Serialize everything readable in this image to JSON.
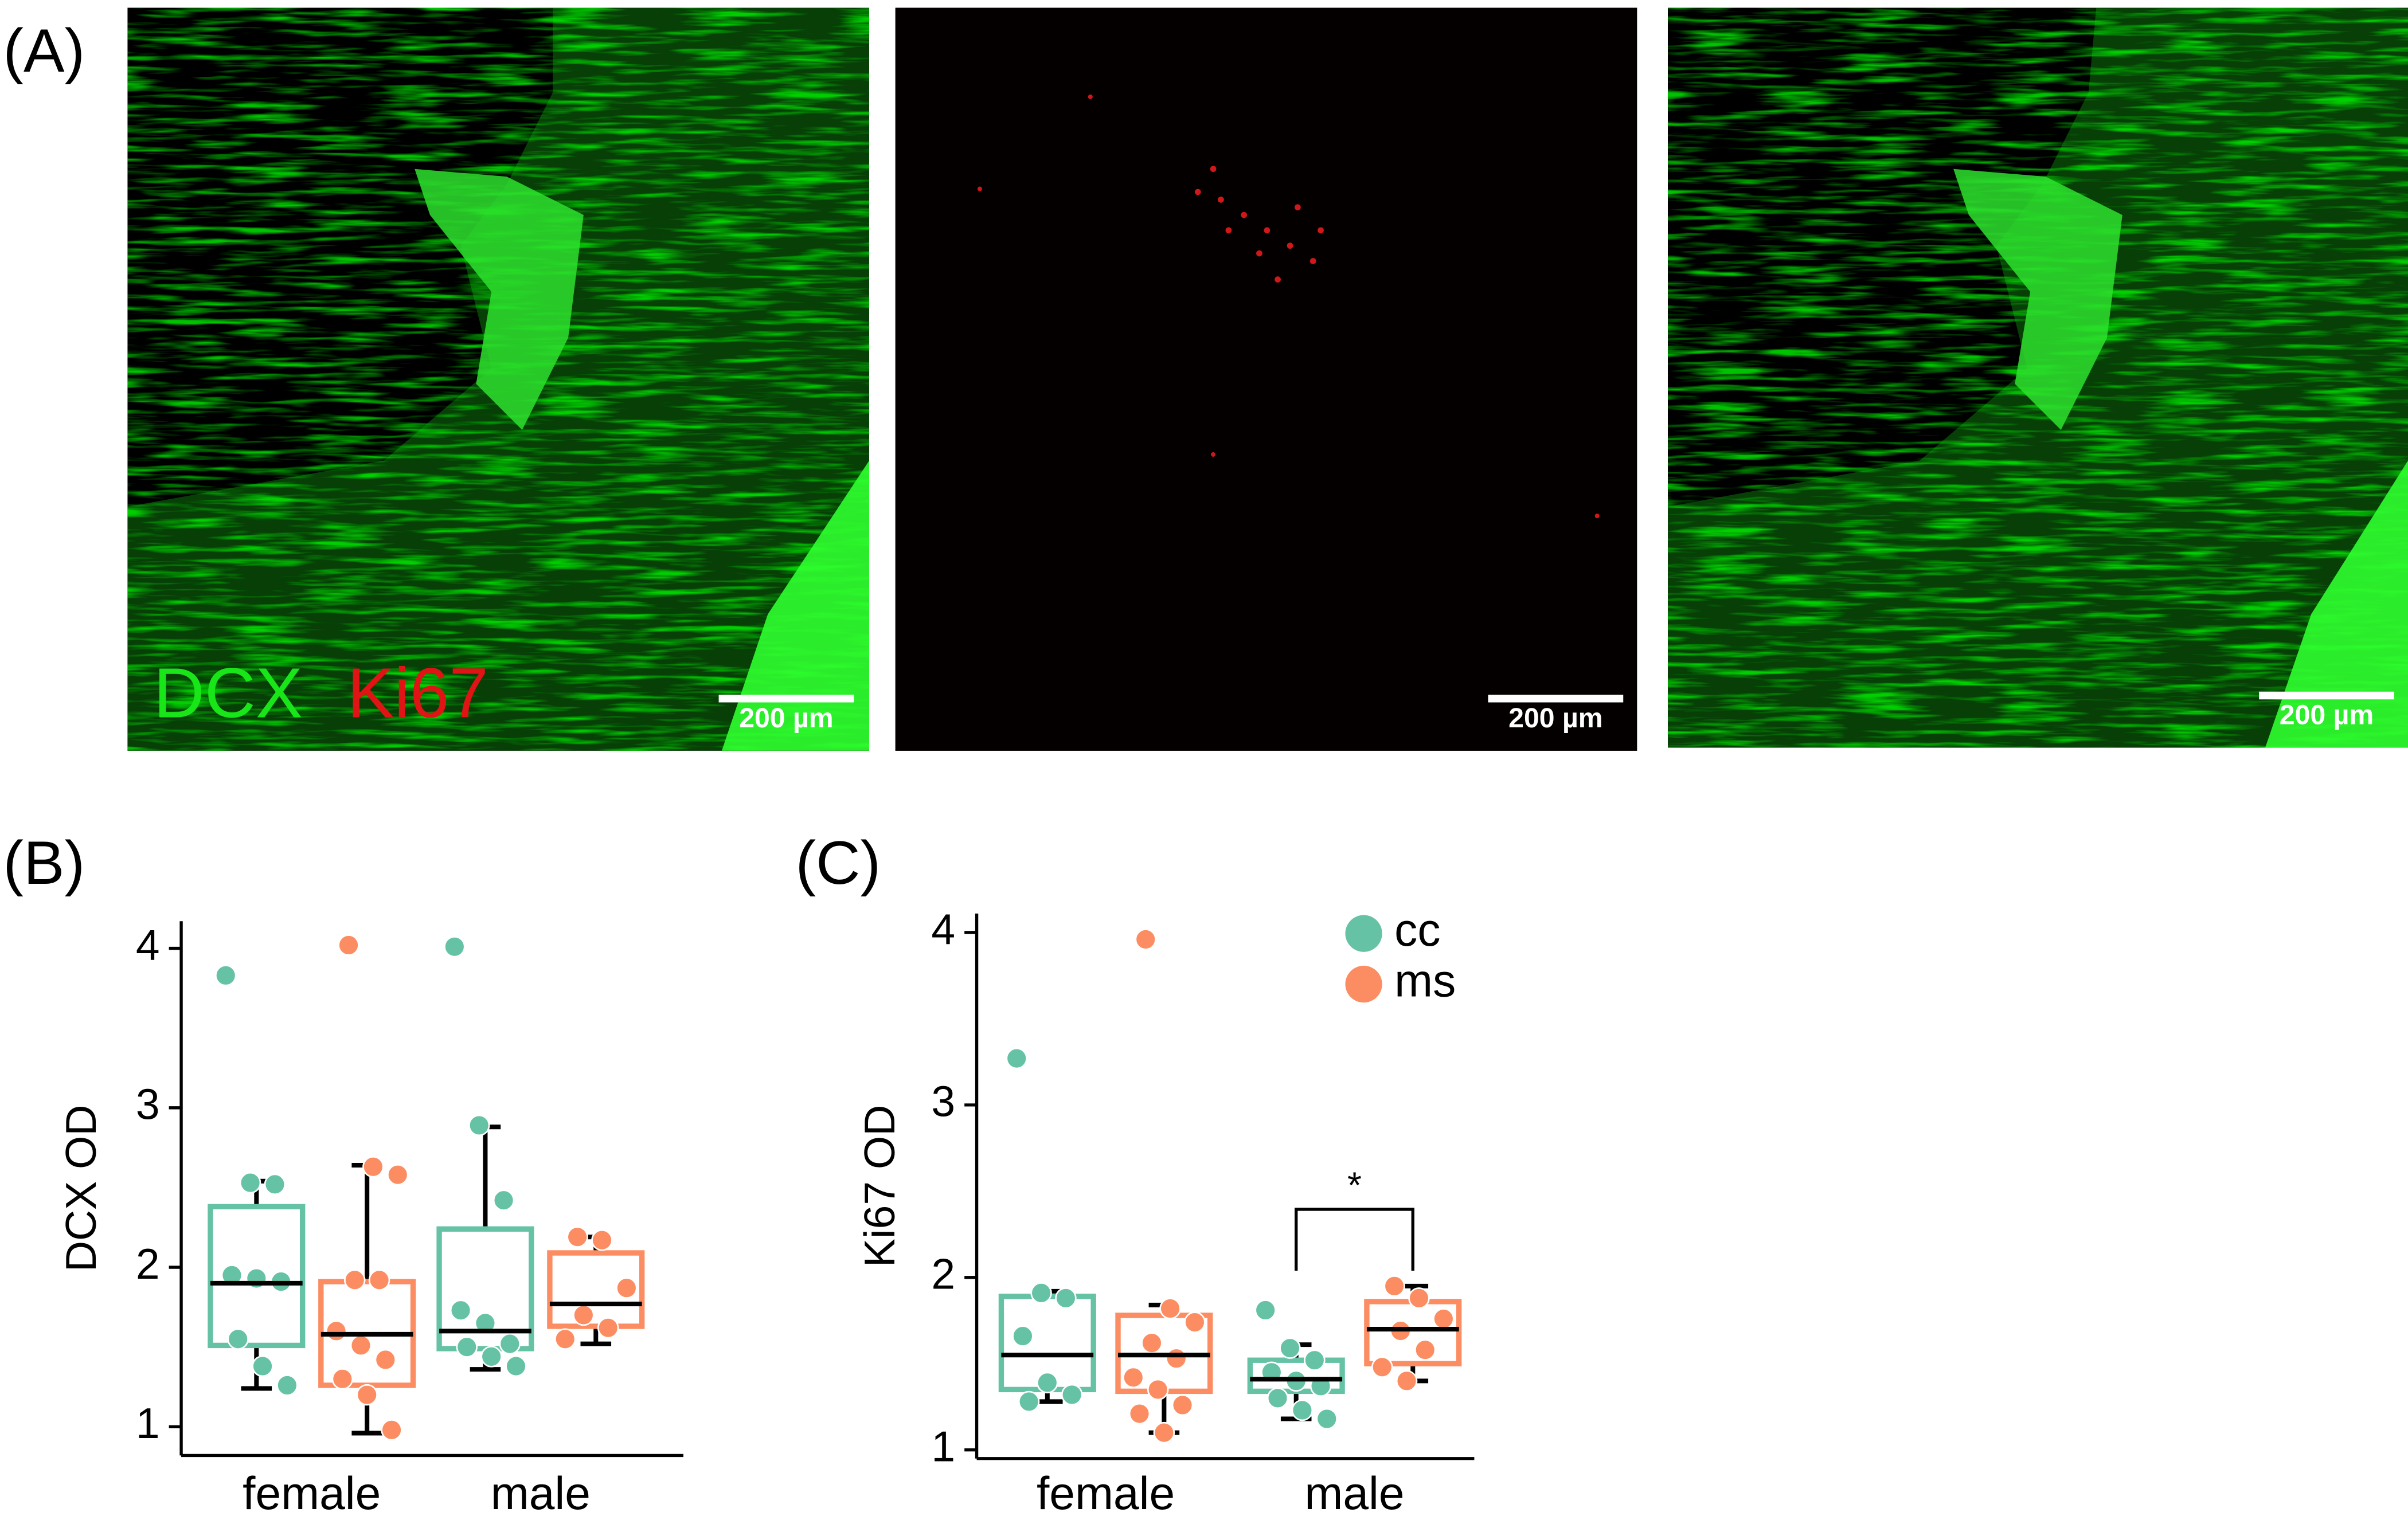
{
  "figure": {
    "panel_a": "(A)",
    "stain_labels": [
      "DCX",
      "Ki67"
    ],
    "scale_bars": [
      "200 µm",
      "200 µm",
      "200 µm"
    ]
  },
  "chart_data": [
    {
      "type": "box",
      "title": "(B)",
      "y_label": "DCX OD",
      "categories": [
        "female",
        "male"
      ],
      "ylim": [
        0.82,
        4.17
      ],
      "yticks": [
        1,
        2,
        3,
        4
      ],
      "legend": false,
      "series": [
        {
          "name": "cc",
          "color": "#66c2a5",
          "boxes": [
            {
              "whislo": 1.24,
              "q1": 1.51,
              "med": 1.9,
              "q3": 2.38,
              "whishi": 2.54
            },
            {
              "whislo": 1.36,
              "q1": 1.49,
              "med": 1.6,
              "q3": 2.24,
              "whishi": 2.88
            }
          ],
          "points": [
            [
              3.83,
              2.53,
              2.52,
              1.95,
              1.93,
              1.91,
              1.55,
              1.38,
              1.26
            ],
            [
              4.01,
              2.89,
              2.42,
              1.73,
              1.65,
              1.52,
              1.5,
              1.44,
              1.38
            ]
          ]
        },
        {
          "name": "ms",
          "color": "#fc8d62",
          "boxes": [
            {
              "whislo": 0.96,
              "q1": 1.26,
              "med": 1.58,
              "q3": 1.91,
              "whishi": 2.64
            },
            {
              "whislo": 1.52,
              "q1": 1.63,
              "med": 1.77,
              "q3": 2.09,
              "whishi": 2.19
            }
          ],
          "points": [
            [
              4.02,
              2.63,
              2.58,
              1.92,
              1.92,
              1.6,
              1.51,
              1.42,
              1.3,
              1.2,
              0.98
            ],
            [
              2.19,
              2.17,
              1.87,
              1.7,
              1.62,
              1.55
            ]
          ]
        }
      ]
    },
    {
      "type": "box",
      "title": "(C)",
      "y_label": "Ki67 OD",
      "categories": [
        "female",
        "male"
      ],
      "ylim": [
        0.95,
        4.11
      ],
      "yticks": [
        1,
        2,
        3,
        4
      ],
      "legend": "top-right",
      "annotations": [
        {
          "text": "*",
          "category": 1
        }
      ],
      "series": [
        {
          "name": "cc",
          "color": "#66c2a5",
          "boxes": [
            {
              "whislo": 1.28,
              "q1": 1.35,
              "med": 1.55,
              "q3": 1.89,
              "whishi": 1.92
            },
            {
              "whislo": 1.18,
              "q1": 1.34,
              "med": 1.41,
              "q3": 1.52,
              "whishi": 1.61
            }
          ],
          "points": [
            [
              3.27,
              1.91,
              1.88,
              1.66,
              1.39,
              1.32,
              1.28
            ],
            [
              1.81,
              1.59,
              1.52,
              1.45,
              1.4,
              1.37,
              1.3,
              1.23,
              1.18
            ]
          ]
        },
        {
          "name": "ms",
          "color": "#fc8d62",
          "boxes": [
            {
              "whislo": 1.1,
              "q1": 1.34,
              "med": 1.55,
              "q3": 1.78,
              "whishi": 1.84
            },
            {
              "whislo": 1.4,
              "q1": 1.5,
              "med": 1.7,
              "q3": 1.86,
              "whishi": 1.95
            }
          ],
          "points": [
            [
              3.96,
              1.82,
              1.74,
              1.62,
              1.53,
              1.42,
              1.35,
              1.26,
              1.21,
              1.1
            ],
            [
              1.95,
              1.88,
              1.76,
              1.69,
              1.58,
              1.48,
              1.4
            ]
          ]
        }
      ]
    }
  ]
}
